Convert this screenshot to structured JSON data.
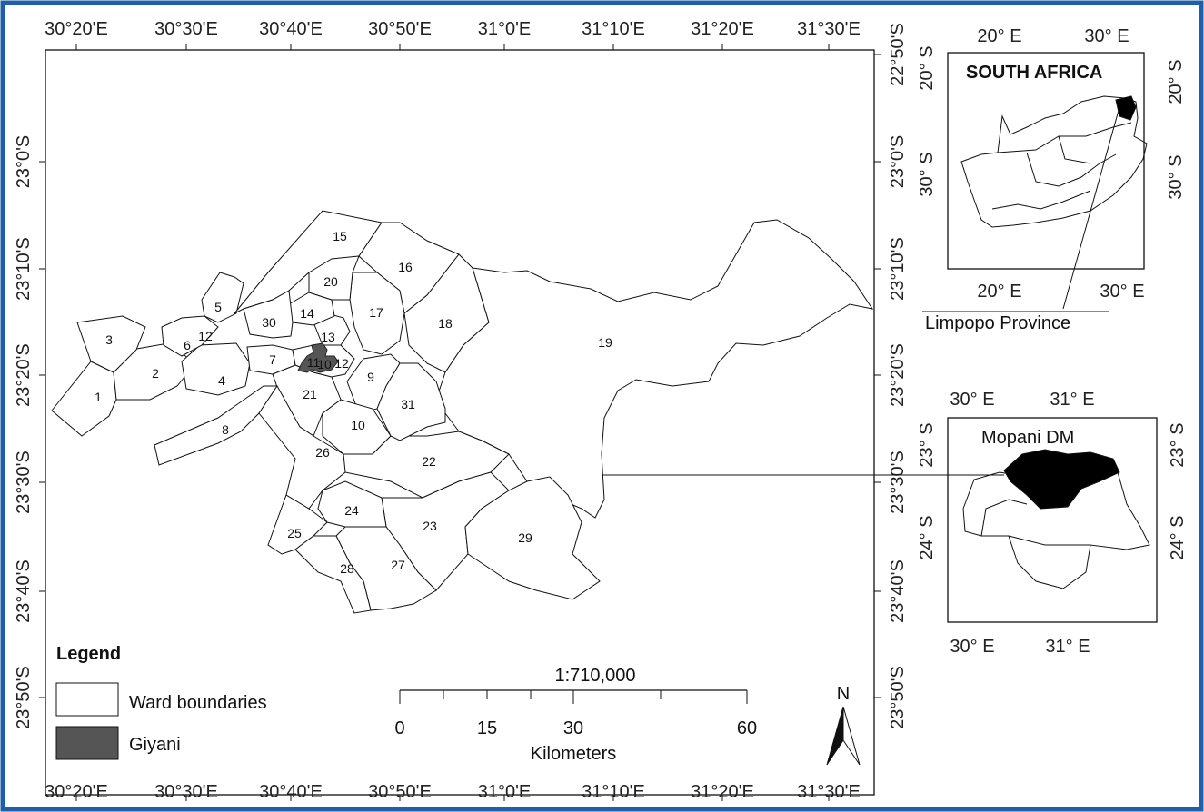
{
  "top_lon_labels": [
    "30°20'E",
    "30°30'E",
    "30°40'E",
    "30°50'E",
    "31°0'E",
    "31°10'E",
    "31°20'E",
    "31°30'E"
  ],
  "bottom_lon_labels": [
    "30°20'E",
    "30°30'E",
    "30°40'E",
    "30°50'E",
    "31°0'E",
    "31°10'E",
    "31°20'E",
    "31°30'E"
  ],
  "left_lat_labels": [
    "23°0'S",
    "23°10'S",
    "23°20'S",
    "23°30'S",
    "23°40'S",
    "23°50'S"
  ],
  "right_lat_labels": [
    "22°50'S",
    "23°0'S",
    "23°10'S",
    "23°20'S",
    "23°30'S",
    "23°40'S",
    "23°50'S"
  ],
  "ward_labels": [
    "1",
    "2",
    "3",
    "4",
    "5",
    "6",
    "7",
    "8",
    "9",
    "10",
    "11",
    "12",
    "13",
    "14",
    "15",
    "16",
    "17",
    "18",
    "19",
    "20",
    "21",
    "22",
    "23",
    "24",
    "25",
    "26",
    "27",
    "28",
    "29",
    "30",
    "31",
    "12",
    "10"
  ],
  "legend": {
    "title": "Legend",
    "items": [
      {
        "label": "Ward boundaries",
        "fill": "#ffffff"
      },
      {
        "label": "Giyani",
        "fill": "#555555"
      }
    ]
  },
  "scale_bar": {
    "ratio": "1:710,000",
    "ticks": [
      "0",
      "15",
      "30",
      "60"
    ],
    "unit": "Kilometers"
  },
  "north_arrow": "N",
  "inset_sa": {
    "title": "SOUTH AFRICA",
    "top_labels": [
      "20° E",
      "30° E"
    ],
    "bottom_labels": [
      "20° E",
      "30° E"
    ],
    "left_labels": [
      "20° S",
      "30° S"
    ],
    "right_labels": [
      "20° S",
      "30° S"
    ],
    "caption": "Limpopo Province"
  },
  "inset_mopani": {
    "title": "Mopani DM",
    "top_labels": [
      "30° E",
      "31° E"
    ],
    "bottom_labels": [
      "30° E",
      "31° E"
    ],
    "left_labels": [
      "23° S",
      "24° S"
    ],
    "right_labels": [
      "23° S",
      "24° S"
    ]
  },
  "colors": {
    "outer_border": "#1f5fa8",
    "giyani": "#555555",
    "mopani_fill": "#000000"
  }
}
